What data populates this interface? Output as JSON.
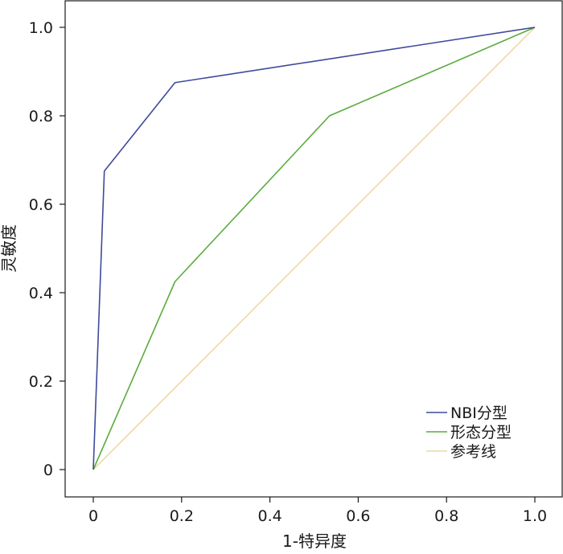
{
  "chart_data": {
    "type": "line",
    "title": "",
    "xlabel": "1-特异度",
    "ylabel": "灵敏度",
    "xlim": [
      0,
      1
    ],
    "ylim": [
      0,
      1
    ],
    "x_ticks": [
      0,
      0.2,
      0.4,
      0.6,
      0.8,
      1.0
    ],
    "x_tick_labels": [
      "0",
      "0.2",
      "0.4",
      "0.6",
      "0.8",
      "1.0"
    ],
    "y_ticks": [
      0,
      0.2,
      0.4,
      0.6,
      0.8,
      1.0
    ],
    "y_tick_labels": [
      "0",
      "0.2",
      "0.4",
      "0.6",
      "0.8",
      "1.0"
    ],
    "grid": false,
    "legend_position": "bottom-right",
    "series": [
      {
        "name": "NBI分型",
        "color": "#3f4a9a",
        "x": [
          0,
          0.025,
          0.185,
          1.0
        ],
        "y": [
          0,
          0.675,
          0.875,
          1.0
        ]
      },
      {
        "name": "形态分型",
        "color": "#5aac3c",
        "x": [
          0,
          0.185,
          0.535,
          1.0
        ],
        "y": [
          0,
          0.425,
          0.8,
          1.0
        ]
      },
      {
        "name": "参考线",
        "color": "#eed9a6",
        "x": [
          0,
          1.0
        ],
        "y": [
          0,
          1.0
        ]
      }
    ]
  }
}
